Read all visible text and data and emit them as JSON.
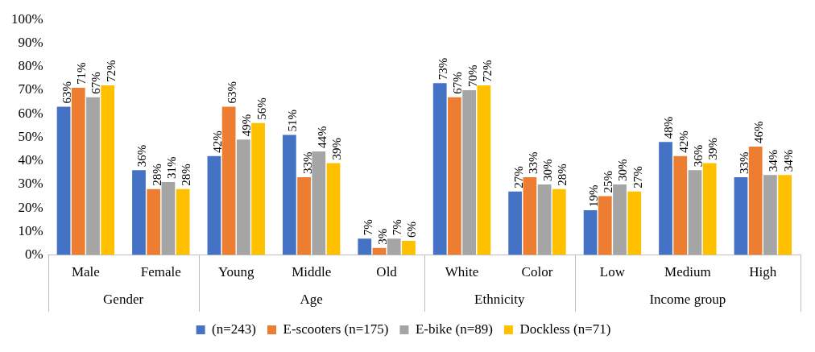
{
  "chart_data": {
    "type": "bar",
    "categories": [
      "Male",
      "Female",
      "Young",
      "Middle",
      "Old",
      "White",
      "Color",
      "Low",
      "Medium",
      "High"
    ],
    "series": [
      {
        "name": "(n=243)",
        "color": "#4472c4",
        "values": [
          63,
          36,
          42,
          51,
          7,
          73,
          27,
          19,
          48,
          33
        ],
        "value_labels": [
          "63%",
          "36%",
          "42%",
          "51%",
          "7%",
          "73%",
          "27%",
          "19%",
          "48%",
          "33%"
        ]
      },
      {
        "name": "E-scooters (n=175)",
        "color": "#ed7d31",
        "values": [
          71,
          28,
          63,
          33,
          3,
          67,
          33,
          25,
          42,
          46
        ],
        "value_labels": [
          "71%",
          "28%",
          "63%",
          "33%",
          "3%",
          "67%",
          "33%",
          "25%",
          "42%",
          "46%"
        ]
      },
      {
        "name": "E-bike (n=89)",
        "color": "#a5a5a5",
        "values": [
          67,
          31,
          49,
          44,
          7,
          70,
          30,
          30,
          36,
          34
        ],
        "value_labels": [
          "67%",
          "31%",
          "49%",
          "44%",
          "7%",
          "70%",
          "30%",
          "30%",
          "36%",
          "34%"
        ]
      },
      {
        "name": "Dockless (n=71)",
        "color": "#ffc000",
        "values": [
          72,
          28,
          56,
          39,
          6,
          72,
          28,
          27,
          39,
          34
        ],
        "value_labels": [
          "72%",
          "28%",
          "56%",
          "39%",
          "6%",
          "72%",
          "28%",
          "27%",
          "39%",
          "34%"
        ]
      }
    ],
    "ylim": [
      0,
      100
    ],
    "yticks": [
      {
        "value": 0,
        "label": "0%"
      },
      {
        "value": 10,
        "label": "10%"
      },
      {
        "value": 20,
        "label": "20%"
      },
      {
        "value": 30,
        "label": "30%"
      },
      {
        "value": 40,
        "label": "40%"
      },
      {
        "value": 50,
        "label": "50%"
      },
      {
        "value": 60,
        "label": "60%"
      },
      {
        "value": 70,
        "label": "70%"
      },
      {
        "value": 80,
        "label": "80%"
      },
      {
        "value": 90,
        "label": "90%"
      },
      {
        "value": 100,
        "label": "100%"
      }
    ],
    "annotations": [
      "Gender",
      "Age",
      "Ethnicity",
      "Income group"
    ],
    "grid": false,
    "legend": "bottom"
  }
}
